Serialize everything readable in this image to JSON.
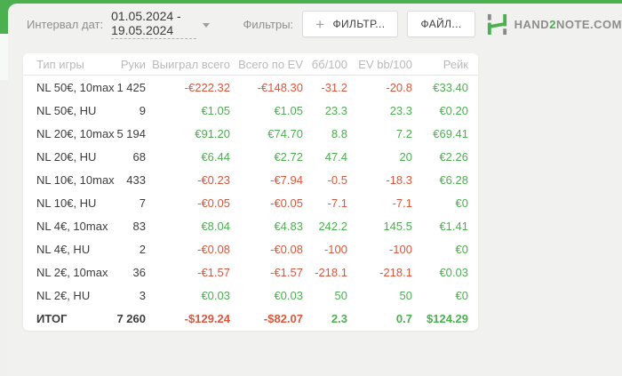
{
  "colors": {
    "brand_green": "#4caf50",
    "negative": "#d9573d",
    "positive": "#4caf50"
  },
  "toolbar": {
    "date_label": "Интервал дат:",
    "date_range": "01.05.2024 - 19.05.2024",
    "filters_label": "Фильтры:",
    "filter_button_icon": "+",
    "filter_button_label": "ФИЛЬТР...",
    "file_button_label": "ФАЙЛ...",
    "logo": {
      "pre": "HAND",
      "digit": "2",
      "post": "NOTE.COM"
    }
  },
  "table": {
    "columns": [
      {
        "key": "game",
        "label": "Тип игры",
        "align": "left"
      },
      {
        "key": "hands",
        "label": "Руки",
        "align": "right"
      },
      {
        "key": "won",
        "label": "Выиграл всего",
        "align": "right"
      },
      {
        "key": "ev",
        "label": "Всего по EV",
        "align": "right"
      },
      {
        "key": "bb100",
        "label": "бб/100",
        "align": "right"
      },
      {
        "key": "evbb100",
        "label": "EV bb/100",
        "align": "right"
      },
      {
        "key": "rake",
        "label": "Рейк",
        "align": "right"
      }
    ],
    "rows": [
      {
        "game": "NL 50€, 10max",
        "hands": "1 425",
        "won": "-€222.32",
        "ev": "-€148.30",
        "bb100": "-31.2",
        "evbb100": "-20.8",
        "rake": "€33.40"
      },
      {
        "game": "NL 50€, HU",
        "hands": "9",
        "won": "€1.05",
        "ev": "€1.05",
        "bb100": "23.3",
        "evbb100": "23.3",
        "rake": "€0.20"
      },
      {
        "game": "NL 20€, 10max",
        "hands": "5 194",
        "won": "€91.20",
        "ev": "€74.70",
        "bb100": "8.8",
        "evbb100": "7.2",
        "rake": "€69.41"
      },
      {
        "game": "NL 20€, HU",
        "hands": "68",
        "won": "€6.44",
        "ev": "€2.72",
        "bb100": "47.4",
        "evbb100": "20",
        "rake": "€2.26"
      },
      {
        "game": "NL 10€, 10max",
        "hands": "433",
        "won": "-€0.23",
        "ev": "-€7.94",
        "bb100": "-0.5",
        "evbb100": "-18.3",
        "rake": "€6.28"
      },
      {
        "game": "NL 10€, HU",
        "hands": "7",
        "won": "-€0.05",
        "ev": "-€0.05",
        "bb100": "-7.1",
        "evbb100": "-7.1",
        "rake": "€0"
      },
      {
        "game": "NL 4€, 10max",
        "hands": "83",
        "won": "€8.04",
        "ev": "€4.83",
        "bb100": "242.2",
        "evbb100": "145.5",
        "rake": "€1.41"
      },
      {
        "game": "NL 4€, HU",
        "hands": "2",
        "won": "-€0.08",
        "ev": "-€0.08",
        "bb100": "-100",
        "evbb100": "-100",
        "rake": "€0"
      },
      {
        "game": "NL 2€, 10max",
        "hands": "36",
        "won": "-€1.57",
        "ev": "-€1.57",
        "bb100": "-218.1",
        "evbb100": "-218.1",
        "rake": "€0.03"
      },
      {
        "game": "NL 2€, HU",
        "hands": "3",
        "won": "€0.03",
        "ev": "€0.03",
        "bb100": "50",
        "evbb100": "50",
        "rake": "€0"
      }
    ],
    "total_row": {
      "game": "ИТОГ",
      "hands": "7 260",
      "won": "-$129.24",
      "ev": "-$82.07",
      "bb100": "2.3",
      "evbb100": "0.7",
      "rake": "$124.29"
    }
  }
}
